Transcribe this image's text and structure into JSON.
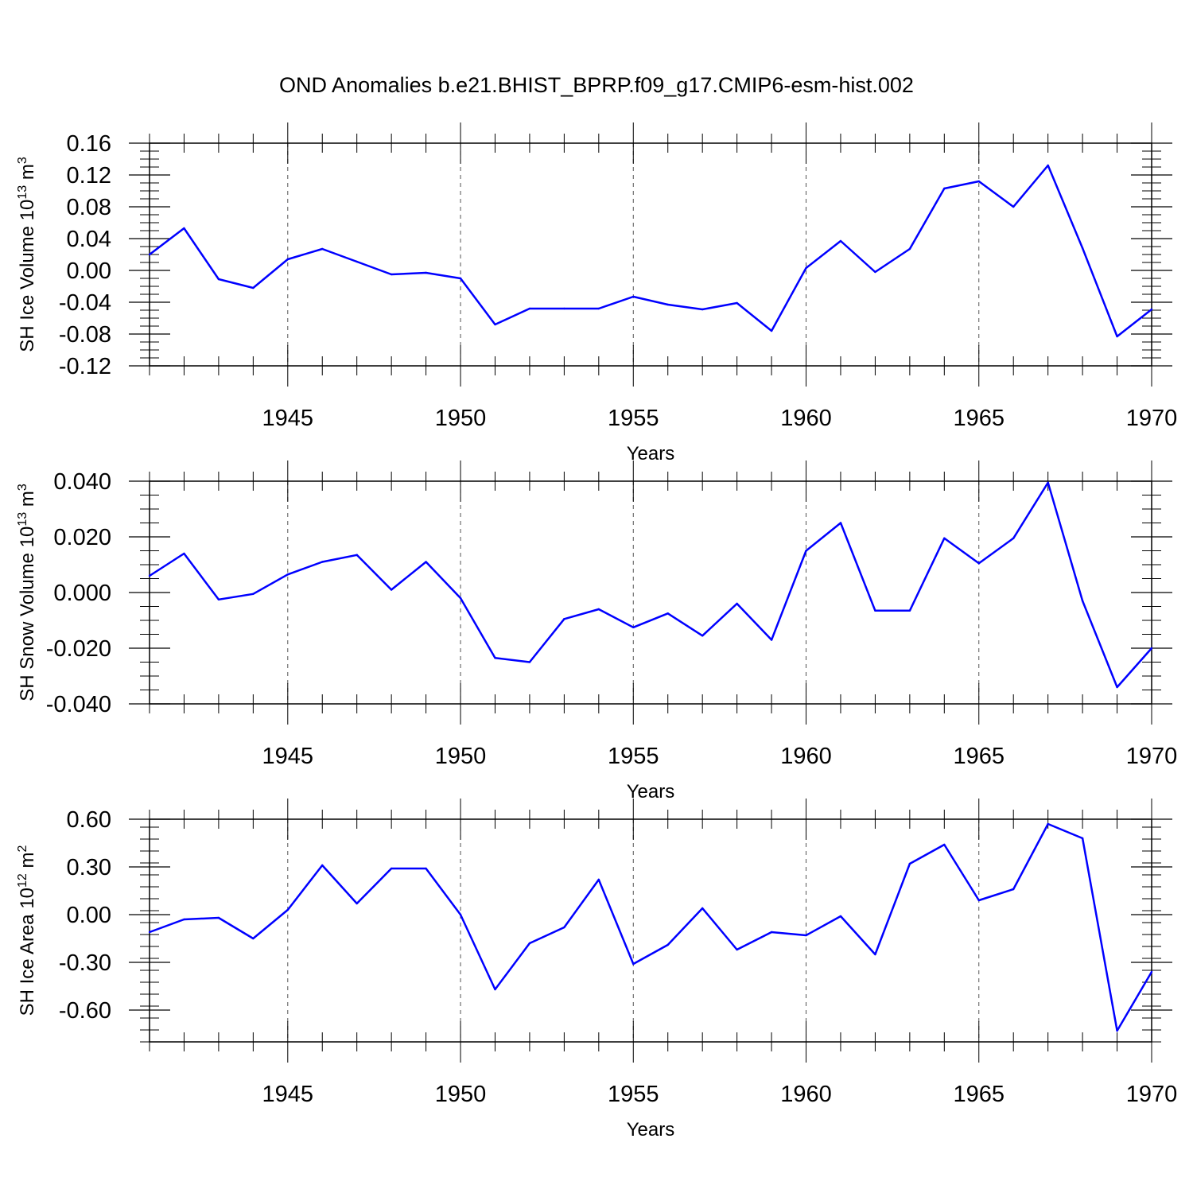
{
  "figure": {
    "title": "OND Anomalies b.e21.BHIST_BPRP.f09_g17.CMIP6-esm-hist.002"
  },
  "chart_data": [
    {
      "type": "line",
      "xlabel": "Years",
      "ylabel": "SH Ice Volume 10",
      "ylabel_exp": "13",
      "ylabel_unit": " m",
      "ylabel_unit_exp": "3",
      "xlim": [
        1941,
        1970
      ],
      "ylim": [
        -0.12,
        0.16
      ],
      "xticks": [
        "1945",
        "1950",
        "1955",
        "1960",
        "1965",
        "1970"
      ],
      "yticks": [
        "0.16",
        "0.12",
        "0.08",
        "0.04",
        "0.00",
        "-0.04",
        "-0.08",
        "-0.12"
      ],
      "grid": "vertical-dashed",
      "color": "#0000ff",
      "x": [
        1941,
        1942,
        1943,
        1944,
        1945,
        1946,
        1947,
        1948,
        1949,
        1950,
        1951,
        1952,
        1953,
        1954,
        1955,
        1956,
        1957,
        1958,
        1959,
        1960,
        1961,
        1962,
        1963,
        1964,
        1965,
        1966,
        1967,
        1968,
        1969,
        1970
      ],
      "values": [
        0.02,
        0.053,
        -0.011,
        -0.022,
        0.014,
        0.027,
        0.011,
        -0.005,
        -0.003,
        -0.01,
        -0.068,
        -0.048,
        -0.048,
        -0.048,
        -0.033,
        -0.043,
        -0.049,
        -0.041,
        -0.076,
        0.003,
        0.037,
        -0.002,
        0.027,
        0.103,
        0.112,
        0.08,
        0.132,
        0.028,
        -0.083,
        -0.049
      ]
    },
    {
      "type": "line",
      "xlabel": "Years",
      "ylabel": "SH Snow Volume 10",
      "ylabel_exp": "13",
      "ylabel_unit": " m",
      "ylabel_unit_exp": "3",
      "xlim": [
        1941,
        1970
      ],
      "ylim": [
        -0.04,
        0.04
      ],
      "xticks": [
        "1945",
        "1950",
        "1955",
        "1960",
        "1965",
        "1970"
      ],
      "yticks": [
        "0.040",
        "0.020",
        "0.000",
        "-0.020",
        "-0.040"
      ],
      "grid": "vertical-dashed",
      "color": "#0000ff",
      "x": [
        1941,
        1942,
        1943,
        1944,
        1945,
        1946,
        1947,
        1948,
        1949,
        1950,
        1951,
        1952,
        1953,
        1954,
        1955,
        1956,
        1957,
        1958,
        1959,
        1960,
        1961,
        1962,
        1963,
        1964,
        1965,
        1966,
        1967,
        1968,
        1969,
        1970
      ],
      "values": [
        0.006,
        0.014,
        -0.0025,
        -0.0005,
        0.0065,
        0.011,
        0.0135,
        0.001,
        0.011,
        -0.002,
        -0.0235,
        -0.025,
        -0.0095,
        -0.006,
        -0.0125,
        -0.0075,
        -0.0155,
        -0.004,
        -0.017,
        0.015,
        0.025,
        -0.0065,
        -0.0065,
        0.0195,
        0.0105,
        0.0195,
        0.0395,
        -0.003,
        -0.034,
        -0.02
      ]
    },
    {
      "type": "line",
      "xlabel": "Years",
      "ylabel": "SH Ice Area 10",
      "ylabel_exp": "12",
      "ylabel_unit": " m",
      "ylabel_unit_exp": "2",
      "xlim": [
        1941,
        1970
      ],
      "ylim": [
        -0.8,
        0.6
      ],
      "xticks": [
        "1945",
        "1950",
        "1955",
        "1960",
        "1965",
        "1970"
      ],
      "yticks": [
        "0.60",
        "0.30",
        "0.00",
        "-0.30",
        "-0.60"
      ],
      "grid": "vertical-dashed",
      "color": "#0000ff",
      "x": [
        1941,
        1942,
        1943,
        1944,
        1945,
        1946,
        1947,
        1948,
        1949,
        1950,
        1951,
        1952,
        1953,
        1954,
        1955,
        1956,
        1957,
        1958,
        1959,
        1960,
        1961,
        1962,
        1963,
        1964,
        1965,
        1966,
        1967,
        1968,
        1969,
        1970
      ],
      "values": [
        -0.11,
        -0.03,
        -0.02,
        -0.15,
        0.03,
        0.31,
        0.07,
        0.29,
        0.29,
        0.0,
        -0.47,
        -0.18,
        -0.08,
        0.22,
        -0.31,
        -0.19,
        0.04,
        -0.22,
        -0.11,
        -0.13,
        -0.01,
        -0.25,
        0.32,
        0.44,
        0.09,
        0.16,
        0.57,
        0.48,
        -0.73,
        -0.36
      ]
    }
  ]
}
